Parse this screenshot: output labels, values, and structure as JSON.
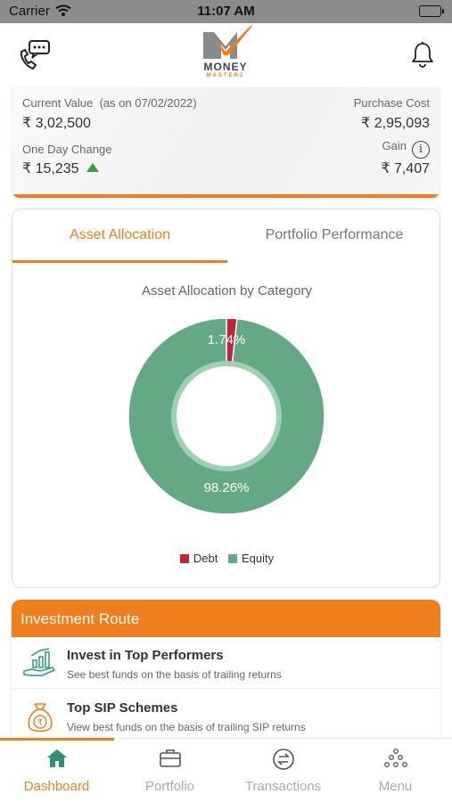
{
  "status_bar": {
    "carrier": "Carrier",
    "time": "11:07 AM"
  },
  "header": {
    "brand_line1": "MONEY",
    "brand_line2": "MASTERZ"
  },
  "summary": {
    "current_value_label": "Current Value",
    "as_on": "(as on 07/02/2022)",
    "current_value": "₹ 3,02,500",
    "purchase_cost_label": "Purchase Cost",
    "purchase_cost": "₹ 2,95,093",
    "one_day_change_label": "One Day Change",
    "one_day_change": "₹ 15,235",
    "gain_label": "Gain",
    "gain": "₹ 7,407"
  },
  "tabs": {
    "asset_allocation": "Asset Allocation",
    "portfolio_performance": "Portfolio Performance"
  },
  "chart_data": {
    "type": "pie",
    "title": "Asset Allocation by Category",
    "categories": [
      "Debt",
      "Equity"
    ],
    "values": [
      1.74,
      98.26
    ],
    "labels": [
      "1.74%",
      "98.26%"
    ],
    "colors": [
      "#c0243c",
      "#62a984"
    ],
    "legend_position": "bottom"
  },
  "investment_route": {
    "title": "Investment Route",
    "items": [
      {
        "title": "Invest in Top Performers",
        "subtitle": "See best funds on the basis of trailing returns"
      },
      {
        "title": "Top SIP Schemes",
        "subtitle": "View best funds on the basis of trailing SIP returns"
      }
    ]
  },
  "bottom_nav": {
    "dashboard": "Dashboard",
    "portfolio": "Portfolio",
    "transactions": "Transactions",
    "menu": "Menu"
  },
  "colors": {
    "accent": "#ef7e1c",
    "debt": "#c0243c",
    "equity": "#62a984"
  }
}
